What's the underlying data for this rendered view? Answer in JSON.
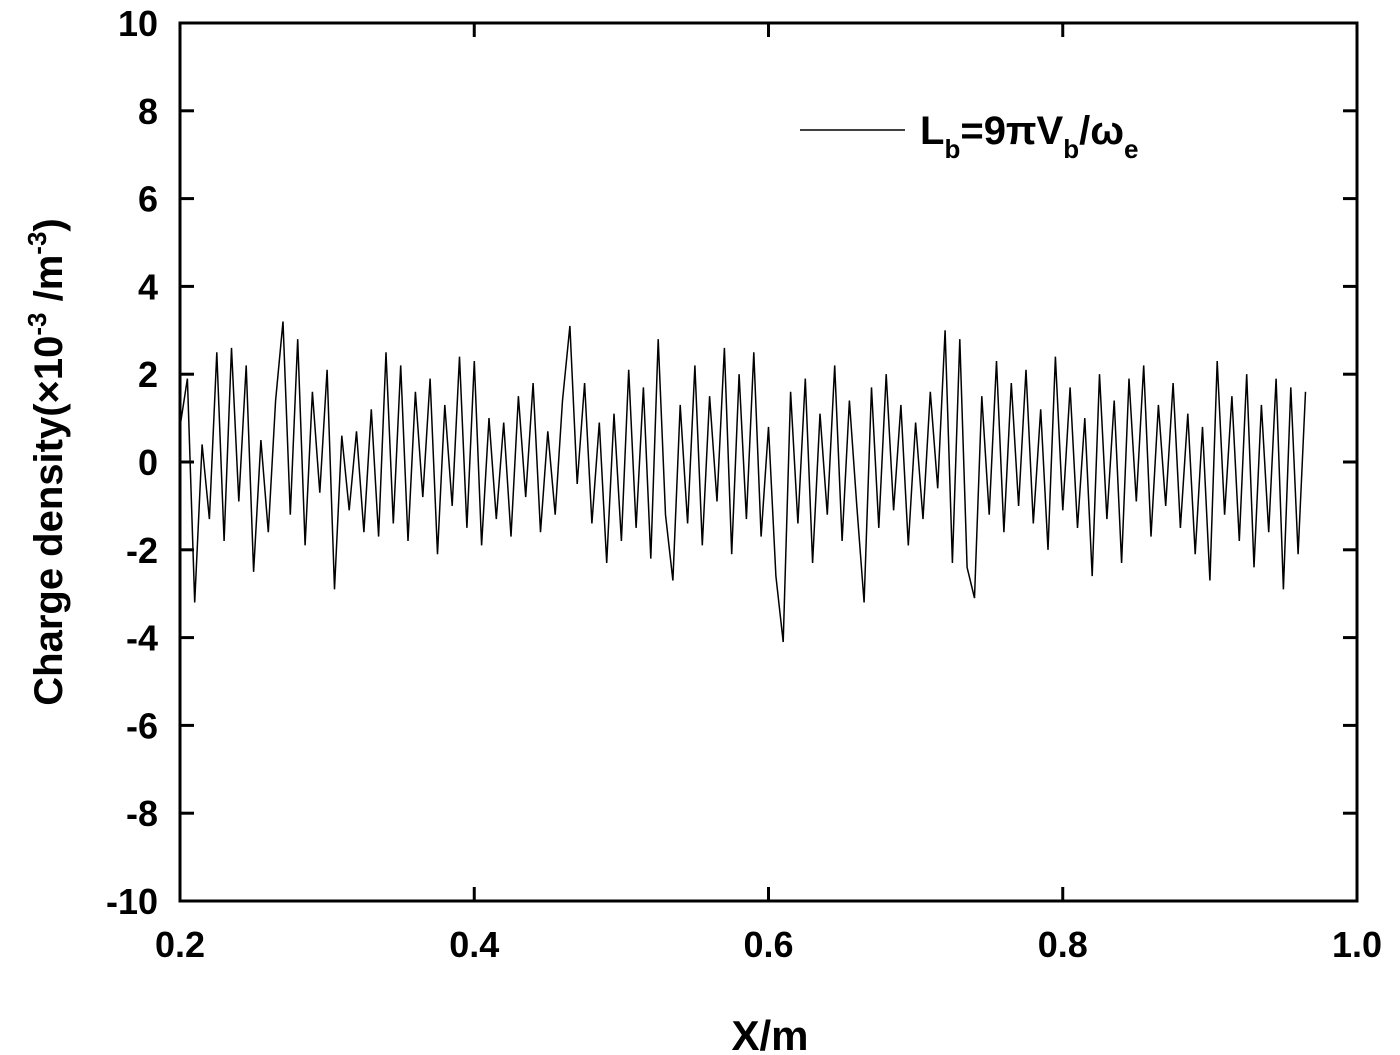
{
  "chart_data": {
    "type": "line",
    "xlabel": "X/m",
    "ylabel": [
      "Charge density(×10",
      "-3",
      " /m",
      "-3",
      ")"
    ],
    "xlim": [
      0.2,
      1
    ],
    "ylim": [
      -10,
      10
    ],
    "xticks": [
      0.2,
      0.4,
      0.6,
      0.8,
      {
        "value": 1,
        "label": "1.0"
      }
    ],
    "yticks": [
      -10,
      -8,
      -6,
      -4,
      -2,
      0,
      2,
      4,
      6,
      8,
      10
    ],
    "legend": "upper right",
    "x": [
      0.2,
      0.205,
      0.21,
      0.215,
      0.22,
      0.225,
      0.23,
      0.235,
      0.24,
      0.245,
      0.25,
      0.255,
      0.26,
      0.265,
      0.27,
      0.275,
      0.28,
      0.285,
      0.29,
      0.295,
      0.3,
      0.305,
      0.31,
      0.315,
      0.32,
      0.325,
      0.33,
      0.335,
      0.34,
      0.345,
      0.35,
      0.355,
      0.36,
      0.365,
      0.37,
      0.375,
      0.38,
      0.385,
      0.39,
      0.395,
      0.4,
      0.405,
      0.41,
      0.415,
      0.42,
      0.425,
      0.43,
      0.435,
      0.44,
      0.445,
      0.45,
      0.455,
      0.46,
      0.465,
      0.47,
      0.475,
      0.48,
      0.485,
      0.49,
      0.495,
      0.5,
      0.505,
      0.51,
      0.515,
      0.52,
      0.525,
      0.53,
      0.535,
      0.54,
      0.545,
      0.55,
      0.555,
      0.56,
      0.565,
      0.57,
      0.575,
      0.58,
      0.585,
      0.59,
      0.595,
      0.6,
      0.605,
      0.61,
      0.615,
      0.62,
      0.625,
      0.63,
      0.635,
      0.64,
      0.645,
      0.65,
      0.655,
      0.66,
      0.665,
      0.67,
      0.675,
      0.68,
      0.685,
      0.69,
      0.695,
      0.7,
      0.705,
      0.71,
      0.715,
      0.72,
      0.725,
      0.73,
      0.735,
      0.74,
      0.745,
      0.75,
      0.755,
      0.76,
      0.765,
      0.77,
      0.775,
      0.78,
      0.785,
      0.79,
      0.795,
      0.8,
      0.805,
      0.81,
      0.815,
      0.82,
      0.825,
      0.83,
      0.835,
      0.84,
      0.845,
      0.85,
      0.855,
      0.86,
      0.865,
      0.87,
      0.875,
      0.88,
      0.885,
      0.89,
      0.895,
      0.9,
      0.905,
      0.91,
      0.915,
      0.92,
      0.925,
      0.93,
      0.935,
      0.94,
      0.945,
      0.95,
      0.955,
      0.96,
      0.965
    ],
    "series": [
      {
        "name": [
          "L",
          "b",
          "=9πV",
          "b",
          "/ω",
          "e"
        ],
        "color": "#000000",
        "values": [
          0.8,
          1.9,
          -3.2,
          0.4,
          -1.3,
          2.5,
          -1.8,
          2.6,
          -0.9,
          2.2,
          -2.5,
          0.5,
          -1.6,
          1.4,
          3.2,
          -1.2,
          2.8,
          -1.9,
          1.6,
          -0.7,
          2.1,
          -2.9,
          0.6,
          -1.1,
          0.7,
          -1.6,
          1.2,
          -1.7,
          2.5,
          -1.4,
          2.2,
          -1.8,
          1.6,
          -0.8,
          1.9,
          -2.1,
          1.3,
          -1.0,
          2.4,
          -1.5,
          2.3,
          -1.9,
          1.0,
          -1.3,
          0.9,
          -1.7,
          1.5,
          -0.8,
          1.8,
          -1.6,
          0.7,
          -1.2,
          1.4,
          3.1,
          -0.5,
          1.8,
          -1.4,
          0.9,
          -2.3,
          1.1,
          -1.8,
          2.1,
          -1.5,
          1.7,
          -2.2,
          2.8,
          -1.2,
          -2.7,
          1.3,
          -1.4,
          2.2,
          -1.9,
          1.5,
          -0.9,
          2.6,
          -2.1,
          2.0,
          -1.3,
          2.5,
          -1.7,
          0.8,
          -2.6,
          -4.1,
          1.6,
          -1.4,
          1.9,
          -2.3,
          1.1,
          -1.2,
          2.2,
          -1.8,
          1.4,
          -1.0,
          -3.2,
          1.7,
          -1.5,
          2.0,
          -1.1,
          1.3,
          -1.9,
          0.9,
          -1.3,
          1.6,
          -0.6,
          3.0,
          -2.3,
          2.8,
          -2.4,
          -3.1,
          1.5,
          -1.2,
          2.3,
          -1.6,
          1.8,
          -1.0,
          2.1,
          -1.4,
          1.2,
          -2.0,
          2.4,
          -1.1,
          1.7,
          -1.5,
          1.0,
          -2.6,
          2.0,
          -1.3,
          1.4,
          -2.3,
          1.9,
          -0.9,
          2.2,
          -1.7,
          1.3,
          -1.0,
          1.8,
          -1.5,
          1.1,
          -2.1,
          0.8,
          -2.7,
          2.3,
          -1.2,
          1.5,
          -1.8,
          2.0,
          -2.4,
          1.3,
          -1.6,
          1.9,
          -2.9,
          1.7,
          -2.1,
          1.6
        ]
      }
    ]
  }
}
